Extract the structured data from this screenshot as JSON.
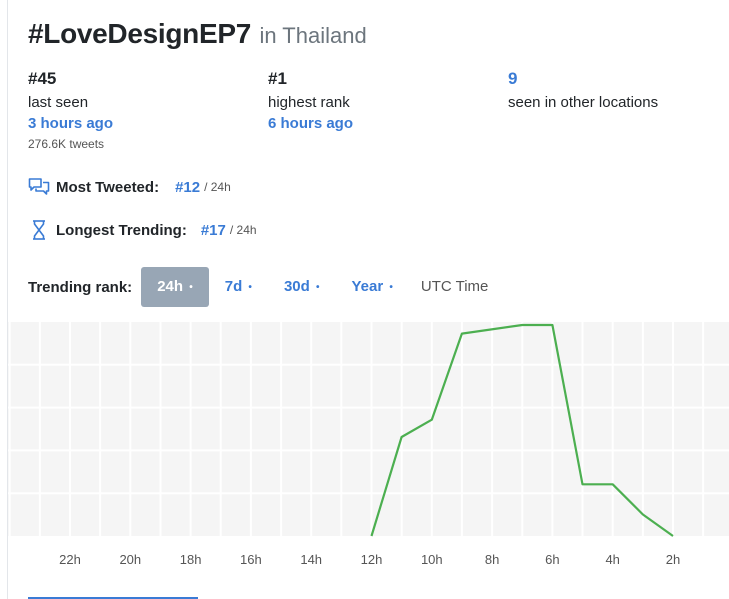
{
  "title": {
    "hashtag": "#LoveDesignEP7",
    "location": "in Thailand"
  },
  "stats": {
    "last_seen": {
      "value": "#45",
      "label": "last seen",
      "ago": "3 hours ago",
      "tweets": "276.6K tweets"
    },
    "highest": {
      "value": "#1",
      "label": "highest rank",
      "ago": "6 hours ago"
    },
    "other": {
      "value": "9",
      "label": "seen in other locations"
    }
  },
  "metrics": {
    "most_tweeted": {
      "label": "Most Tweeted:",
      "value": "#12",
      "sub": "/ 24h",
      "icon": "chat-bubbles-icon"
    },
    "longest": {
      "label": "Longest Trending:",
      "value": "#17",
      "sub": "/ 24h",
      "icon": "hourglass-icon"
    }
  },
  "trending": {
    "label": "Trending rank:",
    "tabs": [
      {
        "label": "24h",
        "dot": "•",
        "active": true
      },
      {
        "label": "7d",
        "dot": "•"
      },
      {
        "label": "30d",
        "dot": "•"
      },
      {
        "label": "Year",
        "dot": "•"
      }
    ],
    "utc": "UTC Time"
  },
  "colors": {
    "accent": "#3a7bd5",
    "line": "#4caf50",
    "grid_bg": "#f5f5f5",
    "tab_active": "#98a6b5"
  },
  "chart_data": {
    "type": "line",
    "x_axis": "hours ago",
    "x_reversed": true,
    "x_ticks": [
      "22h",
      "20h",
      "18h",
      "16h",
      "14h",
      "12h",
      "10h",
      "8h",
      "6h",
      "4h",
      "2h"
    ],
    "x_tick_values": [
      22,
      20,
      18,
      16,
      14,
      12,
      10,
      8,
      6,
      4,
      2
    ],
    "xlim": [
      24,
      0
    ],
    "ylim": [
      1,
      50
    ],
    "y_inverted": true,
    "series": [
      {
        "points": [
          {
            "x": 12,
            "y": 50
          },
          {
            "x": 11,
            "y": 27
          },
          {
            "x": 10,
            "y": 23
          },
          {
            "x": 9,
            "y": 3
          },
          {
            "x": 7,
            "y": 1
          },
          {
            "x": 6,
            "y": 1
          },
          {
            "x": 5,
            "y": 38
          },
          {
            "x": 4,
            "y": 38
          },
          {
            "x": 3,
            "y": 45
          },
          {
            "x": 2,
            "y": 50
          }
        ]
      }
    ]
  }
}
